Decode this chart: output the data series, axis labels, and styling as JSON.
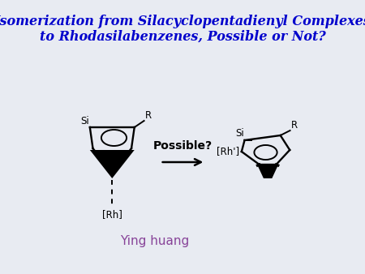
{
  "title_line1": "Isomerization from Silacyclopentadienyl Complexes",
  "title_line2": "to Rhodasilabenzenes, Possible or Not?",
  "title_color": "#0000CC",
  "title_fontsize": 11.5,
  "background_color": "#E8EBF2",
  "author": "Ying huang",
  "author_color": "#884499",
  "author_fontsize": 11,
  "possible_text": "Possible?",
  "possible_fontsize": 10,
  "label_rh": "[Rh]",
  "label_rh2": "[Rh']",
  "label_si1": "Si",
  "label_si2": "Si",
  "label_r1": "R",
  "label_r2": "R",
  "line_color": "#000000",
  "lw": 1.4
}
